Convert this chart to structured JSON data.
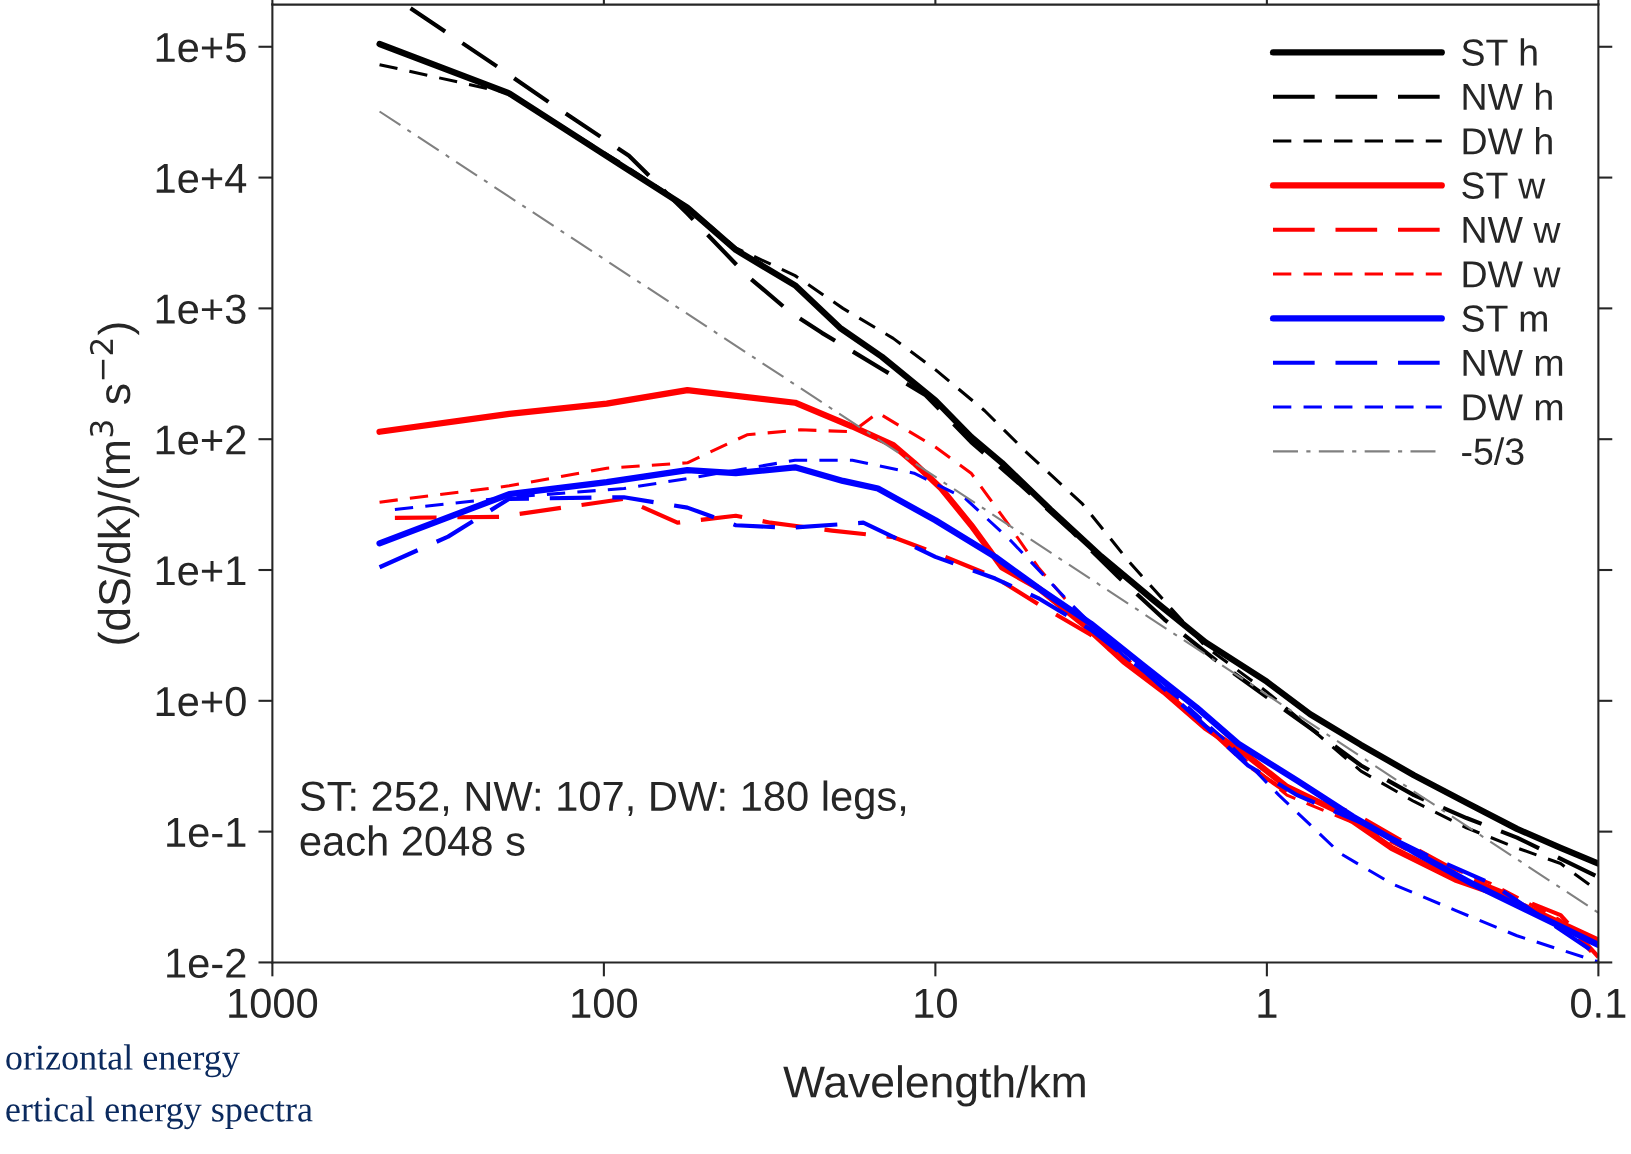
{
  "chart_data": {
    "type": "line",
    "xlabel": "Wavelength/km",
    "ylabel": "(dS/dk)/(m$^{3}$ s$^{−2}$)",
    "log": "xy",
    "grid": false,
    "legend": "top right",
    "xlim": [
      1000,
      0.1
    ],
    "xticks": [
      1000,
      100,
      10,
      1,
      0.1
    ],
    "ylim": [
      0.01,
      210000
    ],
    "yticks": [
      {
        "value": 0.01,
        "label": "1e-2"
      },
      {
        "value": 0.1,
        "label": "1e-1"
      },
      {
        "value": 1,
        "label": "1e+0"
      },
      {
        "value": 10,
        "label": "1e+1"
      },
      {
        "value": 100,
        "label": "1e+2"
      },
      {
        "value": 1000,
        "label": "1e+3"
      },
      {
        "value": 10000,
        "label": "1e+4"
      },
      {
        "value": 100000,
        "label": "1e+5"
      }
    ],
    "annotations": [
      "ST: 252, NW: 107, DW: 180 legs,\neach 2048 s",
      "orizontal energy",
      "ertical energy spectra"
    ],
    "series": [
      {
        "name": "ST h",
        "color": "#000000",
        "line_style": "solid",
        "x": [
          475,
          193,
          87,
          56,
          40,
          26.5,
          19.4,
          14.5,
          10,
          7.8,
          6.3,
          4.5,
          3.16,
          2.2,
          1.53,
          1,
          0.74,
          0.52,
          0.36,
          0.25,
          0.176,
          0.13,
          0.1
        ],
        "values": [
          105000,
          44000,
          12000,
          5900,
          2800,
          1500,
          710,
          427,
          198,
          104,
          66,
          29,
          12.7,
          5.9,
          2.8,
          1.4,
          0.79,
          0.46,
          0.27,
          0.166,
          0.105,
          0.075,
          0.057
        ]
      },
      {
        "name": "NW h",
        "color": "#000000",
        "line_style": "longdash",
        "x": [
          383,
          207,
          145,
          84,
          65,
          56,
          37,
          27.5,
          22,
          14.4,
          10.7,
          7.8,
          5.6,
          3.9,
          2.8,
          2.04,
          1.41,
          1,
          0.74,
          0.52,
          0.36,
          0.25,
          0.176,
          0.1
        ],
        "values": [
          197000,
          69000,
          37000,
          14700,
          7700,
          5300,
          1780,
          940,
          650,
          340,
          217,
          95,
          46,
          20,
          8.8,
          4.2,
          2.0,
          1.07,
          0.62,
          0.32,
          0.19,
          0.127,
          0.09,
          0.045
        ]
      },
      {
        "name": "DW h",
        "color": "#000000",
        "line_style": "dashed",
        "x": [
          475,
          193,
          87,
          56,
          40,
          26.5,
          19,
          13.4,
          10,
          7.1,
          5.3,
          3.6,
          2.6,
          2.0,
          1.53,
          1,
          0.74,
          0.52,
          0.36,
          0.25,
          0.176,
          0.13,
          0.1
        ],
        "values": [
          73000,
          44000,
          12500,
          6000,
          2900,
          1780,
          1000,
          590,
          340,
          165,
          79,
          32,
          11.5,
          5.5,
          2.6,
          1.17,
          0.62,
          0.29,
          0.17,
          0.107,
          0.075,
          0.057,
          0.035
        ]
      },
      {
        "name": "ST w",
        "color": "#ff0000",
        "line_style": "solid",
        "x": [
          475,
          193,
          98,
          56,
          26.5,
          17.8,
          13.4,
          11.6,
          9.6,
          7.8,
          6.3,
          4.9,
          3.6,
          2.7,
          2.04,
          1.53,
          1.16,
          0.87,
          0.6,
          0.42,
          0.27,
          0.2,
          0.1
        ],
        "values": [
          114,
          156,
          187,
          237,
          190,
          125,
          90,
          66,
          42,
          22,
          10.5,
          7.3,
          3.9,
          2.0,
          1.17,
          0.62,
          0.39,
          0.22,
          0.14,
          0.075,
          0.043,
          0.033,
          0.0147
        ]
      },
      {
        "name": "NW w",
        "color": "#ff0000",
        "line_style": "longdash",
        "x": [
          427,
          207,
          87,
          60,
          40,
          31.5,
          20.5,
          13.4,
          10,
          6.6,
          4.9,
          3.4,
          2.35,
          1.63,
          1.14,
          0.87,
          0.55,
          0.36,
          0.24,
          0.13,
          0.1
        ],
        "values": [
          25,
          25.5,
          35,
          23,
          26,
          23,
          20,
          17.8,
          13.5,
          8.8,
          5.5,
          3.2,
          1.55,
          0.74,
          0.32,
          0.2,
          0.14,
          0.075,
          0.043,
          0.023,
          0.011
        ]
      },
      {
        "name": "DW w",
        "color": "#ff0000",
        "line_style": "dashed",
        "x": [
          475,
          193,
          98,
          56,
          37,
          25.5,
          17.8,
          14.9,
          10,
          7.8,
          6,
          4.9,
          3.6,
          2.5,
          1.75,
          1.22,
          0.87,
          0.55,
          0.36,
          0.21,
          0.13,
          0.1
        ],
        "values": [
          33,
          44,
          60,
          66,
          108,
          118,
          114,
          159,
          87,
          55,
          22,
          10.5,
          4.2,
          1.85,
          0.89,
          0.39,
          0.19,
          0.117,
          0.068,
          0.04,
          0.021,
          0.0105
        ]
      },
      {
        "name": "ST m",
        "color": "#0000ff",
        "line_style": "solid",
        "x": [
          475,
          193,
          98,
          56,
          40,
          26.5,
          19,
          14.9,
          10,
          6.6,
          4.9,
          3.4,
          2.35,
          1.63,
          1.22,
          0.81,
          0.55,
          0.36,
          0.24,
          0.1
        ],
        "values": [
          16,
          38,
          47,
          58,
          55,
          61,
          48,
          42,
          24,
          12.6,
          7.3,
          3.9,
          1.85,
          0.89,
          0.47,
          0.245,
          0.13,
          0.07,
          0.04,
          0.0136
        ]
      },
      {
        "name": "NW m",
        "color": "#0000ff",
        "line_style": "longdash",
        "x": [
          475,
          295,
          193,
          87,
          56,
          40,
          27.5,
          16.5,
          10,
          6.6,
          4.9,
          3.4,
          2.35,
          1.63,
          1.14,
          0.81,
          0.52,
          0.33,
          0.21,
          0.1
        ],
        "values": [
          10.5,
          18,
          35,
          36,
          30,
          22,
          21,
          23,
          12.6,
          8.6,
          6.1,
          3.5,
          1.7,
          0.74,
          0.32,
          0.19,
          0.117,
          0.066,
          0.04,
          0.0114
        ]
      },
      {
        "name": "DW m",
        "color": "#0000ff",
        "line_style": "dashed",
        "x": [
          427,
          193,
          87,
          56,
          26.5,
          17.8,
          11.6,
          8.1,
          5.9,
          3.9,
          2.7,
          1.87,
          1.3,
          0.92,
          0.6,
          0.42,
          0.27,
          0.176,
          0.1
        ],
        "values": [
          29,
          36,
          42,
          50,
          69,
          69,
          55,
          35,
          16.6,
          5.5,
          2.2,
          1.07,
          0.47,
          0.19,
          0.068,
          0.04,
          0.025,
          0.016,
          0.0101
        ]
      },
      {
        "name": "-5/3",
        "color": "#808080",
        "line_style": "dashdot",
        "x": [
          475,
          0.1
        ],
        "values": [
          32000,
          0.024
        ]
      }
    ]
  }
}
